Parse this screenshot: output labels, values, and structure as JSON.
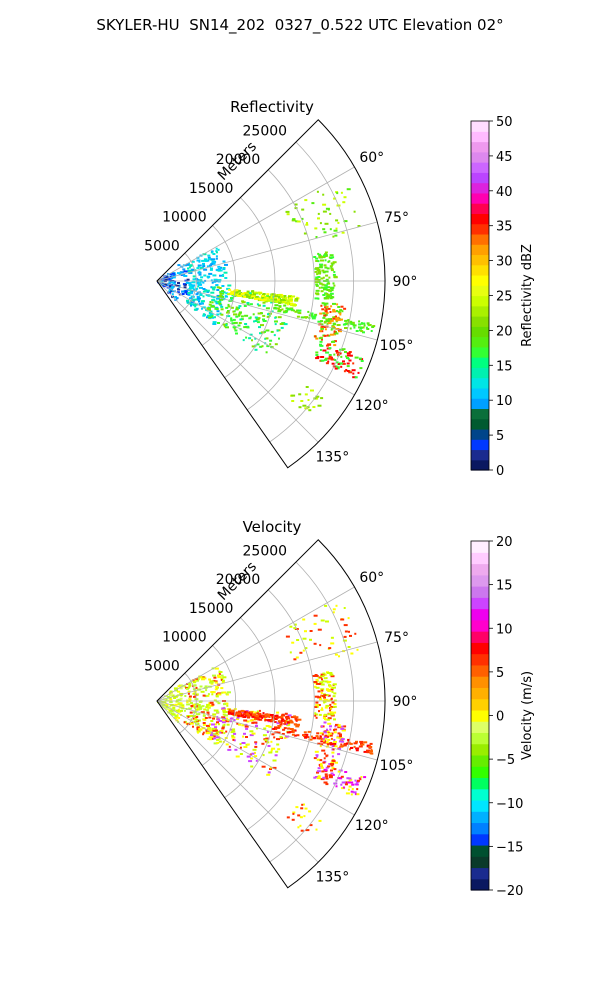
{
  "suptitle": "SKYLER-HU  SN14_202  0327_0.522 UTC Elevation 02°",
  "chart_data": [
    {
      "type": "ppi",
      "title": "Reflectivity",
      "range_label": "Meters",
      "range_ticks": [
        5000,
        10000,
        15000,
        20000,
        25000
      ],
      "range_max": 29000,
      "azimuth_range": [
        45,
        145
      ],
      "azimuth_ticks": [
        "60°",
        "75°",
        "90°",
        "105°",
        "120°",
        "135°"
      ],
      "azimuth_tick_values": [
        60,
        75,
        90,
        105,
        120,
        135
      ],
      "grid": true,
      "colorbar": {
        "label": "Reflectivity dBZ",
        "range": [
          0,
          50
        ],
        "ticks": [
          "0",
          "5",
          "10",
          "15",
          "20",
          "25",
          "30",
          "35",
          "40",
          "45",
          "50"
        ],
        "colors": [
          "#0a1860",
          "#1a2b8f",
          "#0038ff",
          "#00458a",
          "#005a30",
          "#0a6f3a",
          "#00a0ff",
          "#00c8ff",
          "#00e5e5",
          "#00f0b0",
          "#00ff80",
          "#33ff33",
          "#55ee10",
          "#66dd00",
          "#88e000",
          "#aaf000",
          "#ccff00",
          "#e8ff10",
          "#ffff00",
          "#ffe000",
          "#ffc000",
          "#ffa000",
          "#ff7000",
          "#ff3000",
          "#ff0000",
          "#ff0050",
          "#ff00b0",
          "#dd22dd",
          "#bb44ff",
          "#cc66ff",
          "#dd88ee",
          "#ee99ee",
          "#ffbbff",
          "#ffddff"
        ]
      },
      "features": [
        {
          "az": [
            48,
            138
          ],
          "r": [
            0,
            4000
          ],
          "colors": [
            "#1a2b8f",
            "#0038ff",
            "#00c8ff",
            "#00a0ff"
          ],
          "n": 120
        },
        {
          "az": [
            58,
            128
          ],
          "r": [
            4000,
            9000
          ],
          "colors": [
            "#00c8ff",
            "#00e5e5",
            "#00a0ff",
            "#00f0b0"
          ],
          "n": 240
        },
        {
          "az": [
            95,
            125
          ],
          "r": [
            7000,
            17000
          ],
          "colors": [
            "#33ff33",
            "#55ee10",
            "#00f0b0",
            "#88e000"
          ],
          "n": 200
        },
        {
          "az": [
            96,
            100
          ],
          "r": [
            9000,
            18000
          ],
          "colors": [
            "#ffff00",
            "#ccff00",
            "#88e000"
          ],
          "n": 150
        },
        {
          "az": [
            101,
            104
          ],
          "r": [
            15000,
            28000
          ],
          "colors": [
            "#55ee10",
            "#33ff33",
            "#88e000"
          ],
          "n": 90
        },
        {
          "az": [
            80,
            96
          ],
          "r": [
            20000,
            22500
          ],
          "colors": [
            "#55ee10",
            "#33ff33",
            "#88e000"
          ],
          "n": 120
        },
        {
          "az": [
            97,
            110
          ],
          "r": [
            21000,
            24000
          ],
          "colors": [
            "#55ee10",
            "#ff3000",
            "#ffa000"
          ],
          "n": 90
        },
        {
          "az": [
            110,
            116
          ],
          "r": [
            22000,
            28000
          ],
          "colors": [
            "#ff0000",
            "#33ff33",
            "#ff3000",
            "#55ee10"
          ],
          "n": 80
        },
        {
          "az": [
            60,
            76
          ],
          "r": [
            18000,
            27000
          ],
          "colors": [
            "#55ee10",
            "#88e000",
            "#ccff00"
          ],
          "n": 50
        },
        {
          "az": [
            125,
            132
          ],
          "r": [
            22000,
            26000
          ],
          "colors": [
            "#88e000",
            "#ccff00"
          ],
          "n": 20
        }
      ]
    },
    {
      "type": "ppi",
      "title": "Velocity",
      "range_label": "Meters",
      "range_ticks": [
        5000,
        10000,
        15000,
        20000,
        25000
      ],
      "range_max": 29000,
      "azimuth_range": [
        45,
        145
      ],
      "azimuth_ticks": [
        "60°",
        "75°",
        "90°",
        "105°",
        "120°",
        "135°"
      ],
      "azimuth_tick_values": [
        60,
        75,
        90,
        105,
        120,
        135
      ],
      "grid": true,
      "colorbar": {
        "label": "Velocity (m/s)",
        "range": [
          -20,
          20
        ],
        "ticks": [
          "−20",
          "−15",
          "−10",
          "−5",
          "0",
          "5",
          "10",
          "15",
          "20"
        ],
        "colors": [
          "#0a1860",
          "#1a2b8f",
          "#0a3a2a",
          "#005030",
          "#0038ff",
          "#0080ff",
          "#00b0ff",
          "#00e5ff",
          "#00ffd0",
          "#00ff60",
          "#33ff00",
          "#66ee00",
          "#99ee00",
          "#bbff33",
          "#ddff66",
          "#ffff00",
          "#ffd000",
          "#ffb000",
          "#ff9000",
          "#ff6000",
          "#ff3000",
          "#ff0000",
          "#ff0066",
          "#ff00cc",
          "#ee00ee",
          "#cc44ff",
          "#cc77ee",
          "#dd99ee",
          "#eeaaee",
          "#ffccff",
          "#ffeeff"
        ]
      },
      "features": [
        {
          "az": [
            48,
            138
          ],
          "r": [
            0,
            4000
          ],
          "colors": [
            "#ddff66",
            "#ccff00",
            "#ffff00",
            "#bbff33"
          ],
          "n": 120
        },
        {
          "az": [
            58,
            128
          ],
          "r": [
            4000,
            9000
          ],
          "colors": [
            "#ccff00",
            "#ffff00",
            "#ff3000",
            "#bbff33"
          ],
          "n": 220
        },
        {
          "az": [
            95,
            125
          ],
          "r": [
            7000,
            17000
          ],
          "colors": [
            "#ffff00",
            "#ff3000",
            "#cc44ff",
            "#ccff00"
          ],
          "n": 200
        },
        {
          "az": [
            96,
            100
          ],
          "r": [
            9000,
            18000
          ],
          "colors": [
            "#ff3000",
            "#ff6000",
            "#ff0000"
          ],
          "n": 160
        },
        {
          "az": [
            101,
            104
          ],
          "r": [
            15000,
            28000
          ],
          "colors": [
            "#ff3000",
            "#ff0000",
            "#ff6000"
          ],
          "n": 90
        },
        {
          "az": [
            80,
            96
          ],
          "r": [
            20000,
            22500
          ],
          "colors": [
            "#ffff00",
            "#ccff00",
            "#ff3000"
          ],
          "n": 120
        },
        {
          "az": [
            97,
            110
          ],
          "r": [
            21000,
            24000
          ],
          "colors": [
            "#ff3000",
            "#ffff00",
            "#cc44ff"
          ],
          "n": 90
        },
        {
          "az": [
            110,
            116
          ],
          "r": [
            22000,
            28000
          ],
          "colors": [
            "#cc44ff",
            "#ee00ee",
            "#ffff00",
            "#ff3000"
          ],
          "n": 80
        },
        {
          "az": [
            60,
            76
          ],
          "r": [
            18000,
            27000
          ],
          "colors": [
            "#ffff00",
            "#ff3000",
            "#ccff00"
          ],
          "n": 50
        },
        {
          "az": [
            125,
            132
          ],
          "r": [
            22000,
            26000
          ],
          "colors": [
            "#ff3000",
            "#ffff00"
          ],
          "n": 20
        }
      ]
    }
  ]
}
